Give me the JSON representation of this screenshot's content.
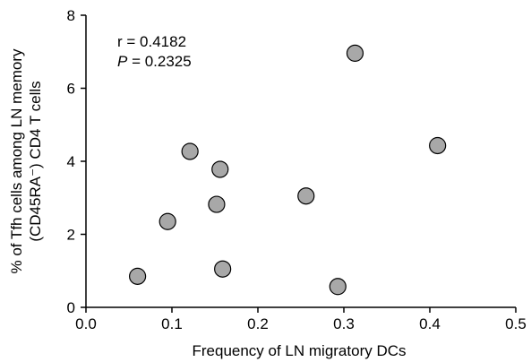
{
  "chart_data": {
    "type": "scatter",
    "xlabel": "Frequency of LN migratory DCs",
    "ylabel_line1": "% of Tfh cells among LN memory",
    "ylabel_line2": "(CD45RA⁻) CD4 T cells",
    "xlim": [
      0.0,
      0.5
    ],
    "ylim": [
      0,
      8
    ],
    "x_ticks": [
      "0.0",
      "0.1",
      "0.2",
      "0.3",
      "0.4",
      "0.5"
    ],
    "y_ticks": [
      "0",
      "2",
      "4",
      "6",
      "8"
    ],
    "grid": false,
    "annotation": {
      "r_text": "r = 0.4182",
      "p_symbol": "P",
      "p_value": " = 0.2325"
    },
    "marker_color": "#a8a8a8",
    "points": [
      {
        "x": 0.06,
        "y": 0.85
      },
      {
        "x": 0.095,
        "y": 2.35
      },
      {
        "x": 0.121,
        "y": 4.27
      },
      {
        "x": 0.152,
        "y": 2.82
      },
      {
        "x": 0.156,
        "y": 3.78
      },
      {
        "x": 0.159,
        "y": 1.05
      },
      {
        "x": 0.256,
        "y": 3.05
      },
      {
        "x": 0.293,
        "y": 0.57
      },
      {
        "x": 0.313,
        "y": 6.96
      },
      {
        "x": 0.409,
        "y": 4.43
      }
    ]
  }
}
